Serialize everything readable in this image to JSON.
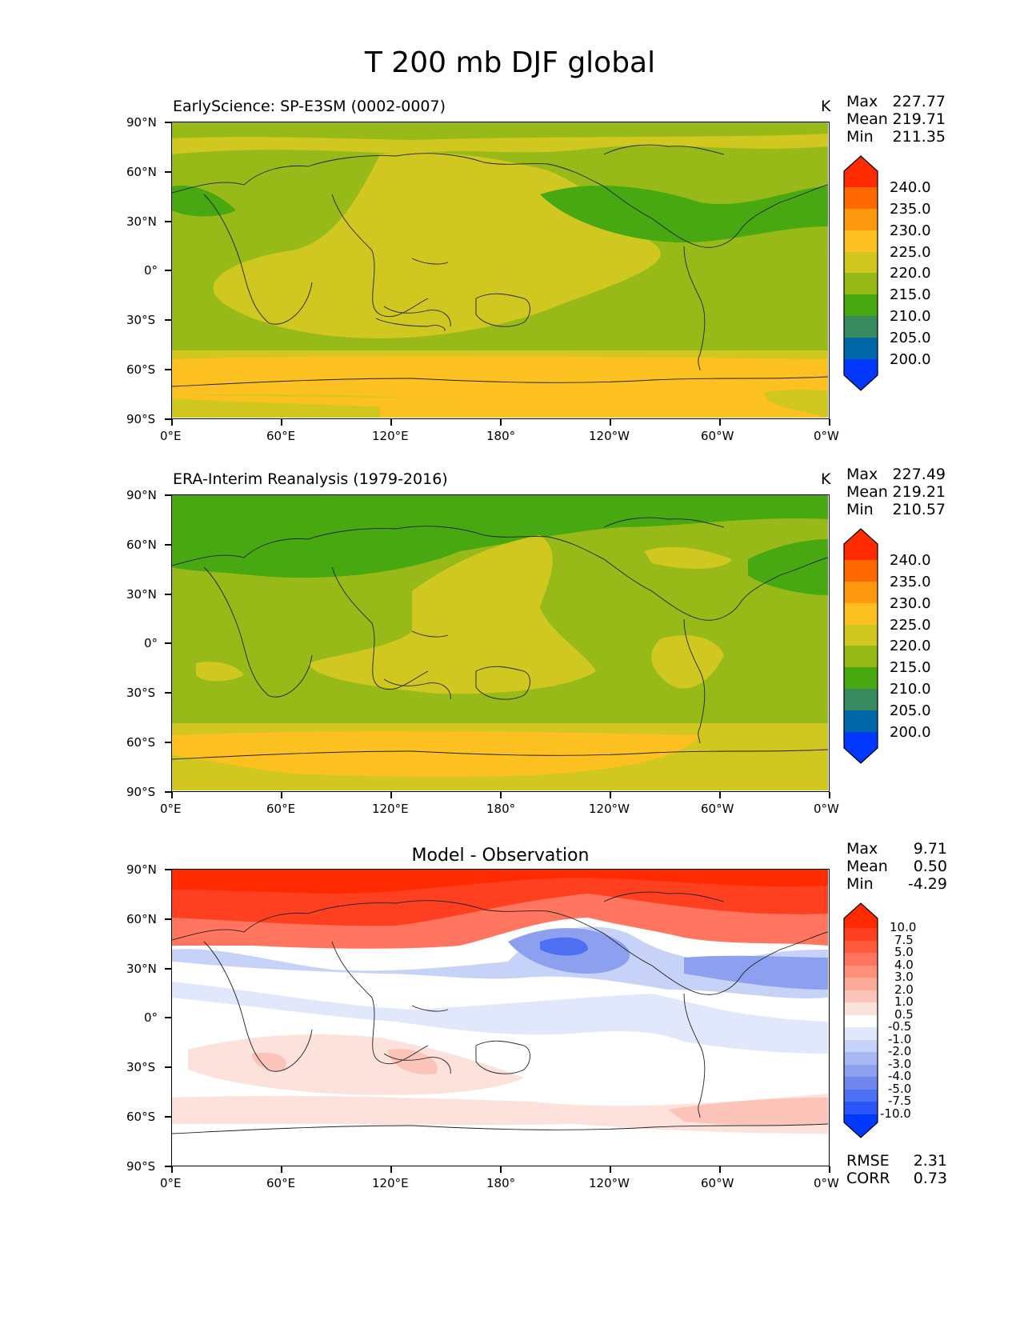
{
  "figure_title": "T 200 mb DJF global",
  "panels": [
    {
      "subtitle": "EarlyScience: SP-E3SM (0002-0007)",
      "units": "K",
      "stats": {
        "max_label": "Max",
        "max": "227.77",
        "mean_label": "Mean",
        "mean": "219.71",
        "min_label": "Min",
        "min": "211.35"
      }
    },
    {
      "subtitle": "ERA-Interim Reanalysis (1979-2016)",
      "units": "K",
      "stats": {
        "max_label": "Max",
        "max": "227.49",
        "mean_label": "Mean",
        "mean": "219.21",
        "min_label": "Min",
        "min": "210.57"
      }
    },
    {
      "subtitle": "Model - Observation",
      "units": "",
      "stats": {
        "max_label": "Max",
        "max": "9.71",
        "mean_label": "Mean",
        "mean": "0.50",
        "min_label": "Min",
        "min": "-4.29"
      },
      "metrics": {
        "rmse_label": "RMSE",
        "rmse": "2.31",
        "corr_label": "CORR",
        "corr": "0.73"
      }
    }
  ],
  "axes": {
    "y_ticks": [
      "90°N",
      "60°N",
      "30°N",
      "0°",
      "30°S",
      "60°S",
      "90°S"
    ],
    "x_ticks": [
      "0°E",
      "60°E",
      "120°E",
      "180°",
      "120°W",
      "60°W",
      "0°W"
    ]
  },
  "colorbars": {
    "temperature": {
      "labels": [
        "240.0",
        "235.0",
        "230.0",
        "225.0",
        "220.0",
        "215.0",
        "210.0",
        "205.0",
        "200.0"
      ],
      "colors": [
        "#ff2a00",
        "#ff6a00",
        "#ff9a10",
        "#fcc020",
        "#d0c820",
        "#98ba18",
        "#48a812",
        "#3a8a60",
        "#0068a8",
        "#0038ff"
      ]
    },
    "difference": {
      "labels": [
        "10.0",
        "7.5",
        "5.0",
        "4.0",
        "3.0",
        "2.0",
        "1.0",
        "0.5",
        "-0.5",
        "-1.0",
        "-2.0",
        "-3.0",
        "-4.0",
        "-5.0",
        "-7.5",
        "-10.0"
      ],
      "colors": [
        "#ff2a00",
        "#ff4020",
        "#ff5a3a",
        "#ff7560",
        "#ff9078",
        "#fcaa98",
        "#fcc4b8",
        "#fde2dc",
        "#ffffff",
        "#e2e8fb",
        "#c6d2f8",
        "#a8b8f2",
        "#8ca0ef",
        "#6f88ef",
        "#4d6ff2",
        "#2a55f8",
        "#0038ff"
      ]
    }
  },
  "chart_data": [
    {
      "type": "heatmap",
      "title": "EarlyScience: SP-E3SM (0002-0007)",
      "variable": "T 200 mb DJF",
      "units": "K",
      "x_range": [
        0,
        360
      ],
      "y_range": [
        -90,
        90
      ],
      "levels": [
        200,
        205,
        210,
        215,
        220,
        225,
        230,
        235,
        240
      ],
      "stats": {
        "max": 227.77,
        "mean": 219.71,
        "min": 211.35
      }
    },
    {
      "type": "heatmap",
      "title": "ERA-Interim Reanalysis (1979-2016)",
      "variable": "T 200 mb DJF",
      "units": "K",
      "x_range": [
        0,
        360
      ],
      "y_range": [
        -90,
        90
      ],
      "levels": [
        200,
        205,
        210,
        215,
        220,
        225,
        230,
        235,
        240
      ],
      "stats": {
        "max": 227.49,
        "mean": 219.21,
        "min": 210.57
      }
    },
    {
      "type": "heatmap",
      "title": "Model - Observation",
      "x_range": [
        0,
        360
      ],
      "y_range": [
        -90,
        90
      ],
      "levels": [
        -10,
        -7.5,
        -5,
        -4,
        -3,
        -2,
        -1,
        -0.5,
        0.5,
        1,
        2,
        3,
        4,
        5,
        7.5,
        10
      ],
      "stats": {
        "max": 9.71,
        "mean": 0.5,
        "min": -4.29
      },
      "rmse": 2.31,
      "corr": 0.73
    }
  ]
}
